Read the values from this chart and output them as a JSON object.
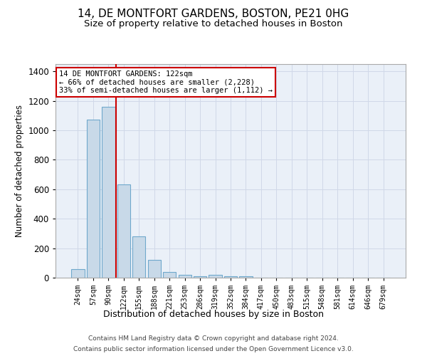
{
  "title": "14, DE MONTFORT GARDENS, BOSTON, PE21 0HG",
  "subtitle": "Size of property relative to detached houses in Boston",
  "xlabel": "Distribution of detached houses by size in Boston",
  "ylabel": "Number of detached properties",
  "footer_line1": "Contains HM Land Registry data © Crown copyright and database right 2024.",
  "footer_line2": "Contains public sector information licensed under the Open Government Licence v3.0.",
  "bar_labels": [
    "24sqm",
    "57sqm",
    "90sqm",
    "122sqm",
    "155sqm",
    "188sqm",
    "221sqm",
    "253sqm",
    "286sqm",
    "319sqm",
    "352sqm",
    "384sqm",
    "417sqm",
    "450sqm",
    "483sqm",
    "515sqm",
    "548sqm",
    "581sqm",
    "614sqm",
    "646sqm",
    "679sqm"
  ],
  "bar_values": [
    60,
    1075,
    1160,
    635,
    280,
    120,
    40,
    18,
    12,
    20,
    10,
    12,
    0,
    0,
    0,
    0,
    0,
    0,
    0,
    0,
    0
  ],
  "bar_color": "#c8d9e8",
  "bar_edge_color": "#6fa8cc",
  "vline_x": 2.5,
  "vline_color": "#cc0000",
  "annotation_text": "14 DE MONTFORT GARDENS: 122sqm\n← 66% of detached houses are smaller (2,228)\n33% of semi-detached houses are larger (1,112) →",
  "annotation_box_color": "#ffffff",
  "annotation_box_edge_color": "#cc0000",
  "ylim": [
    0,
    1450
  ],
  "yticks": [
    0,
    200,
    400,
    600,
    800,
    1000,
    1200,
    1400
  ],
  "grid_color": "#d0d8e8",
  "bg_color": "#eaf0f8",
  "title_fontsize": 11,
  "subtitle_fontsize": 9.5,
  "footer_fontsize": 6.5
}
